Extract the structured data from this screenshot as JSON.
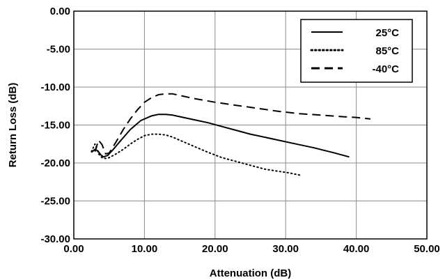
{
  "chart_data": {
    "type": "line",
    "title": "",
    "xlabel": "Attenuation (dB)",
    "ylabel": "Return Loss (dB)",
    "xlim": [
      0,
      50
    ],
    "ylim": [
      -30,
      0
    ],
    "x_ticks": [
      0,
      10,
      20,
      30,
      40,
      50
    ],
    "y_ticks": [
      0,
      -5,
      -10,
      -15,
      -20,
      -25,
      -30
    ],
    "x_tick_labels": [
      "0.00",
      "10.00",
      "20.00",
      "30.00",
      "40.00",
      "50.00"
    ],
    "y_tick_labels": [
      "0.00",
      "-5.00",
      "-10.00",
      "-15.00",
      "-20.00",
      "-25.00",
      "-30.00"
    ],
    "grid": true,
    "legend_position": "top-right",
    "series": [
      {
        "name": "25°C",
        "style": "solid",
        "x": [
          2.5,
          3.0,
          3.4,
          3.8,
          4.2,
          4.8,
          5.5,
          6.5,
          8.0,
          9.5,
          11.0,
          12.0,
          13.0,
          14.0,
          15.0,
          17.0,
          19.0,
          21.0,
          23.0,
          25.0,
          28.0,
          31.0,
          34.0,
          37.0,
          39.0
        ],
        "y": [
          -18.6,
          -18.2,
          -18.4,
          -18.9,
          -19.2,
          -19.0,
          -18.3,
          -17.2,
          -15.6,
          -14.4,
          -13.8,
          -13.6,
          -13.6,
          -13.7,
          -13.9,
          -14.3,
          -14.7,
          -15.2,
          -15.7,
          -16.2,
          -16.8,
          -17.4,
          -18.0,
          -18.7,
          -19.2
        ]
      },
      {
        "name": "85°C",
        "style": "dotted",
        "x": [
          2.5,
          3.0,
          3.5,
          4.0,
          4.5,
          5.0,
          6.0,
          7.0,
          8.0,
          9.0,
          10.0,
          11.0,
          12.0,
          13.0,
          14.0,
          15.0,
          17.0,
          19.0,
          21.0,
          23.0,
          25.0,
          27.0,
          29.0,
          30.5,
          32.0
        ],
        "y": [
          -18.5,
          -17.5,
          -18.8,
          -19.3,
          -19.4,
          -19.3,
          -18.8,
          -18.2,
          -17.5,
          -16.9,
          -16.4,
          -16.2,
          -16.2,
          -16.3,
          -16.6,
          -17.0,
          -17.8,
          -18.6,
          -19.3,
          -19.8,
          -20.3,
          -20.8,
          -21.1,
          -21.3,
          -21.6
        ]
      },
      {
        "name": "-40°C",
        "style": "dashed",
        "x": [
          3.0,
          3.5,
          4.0,
          4.5,
          5.0,
          6.0,
          7.0,
          8.0,
          9.0,
          10.0,
          11.0,
          12.0,
          13.0,
          14.0,
          15.0,
          17.0,
          20.0,
          23.0,
          26.0,
          29.0,
          32.0,
          35.0,
          38.0,
          40.0,
          42.0
        ],
        "y": [
          -18.5,
          -17.0,
          -17.6,
          -18.8,
          -18.7,
          -17.2,
          -15.6,
          -14.2,
          -13.0,
          -12.0,
          -11.4,
          -11.0,
          -10.9,
          -10.9,
          -11.1,
          -11.5,
          -12.0,
          -12.4,
          -12.8,
          -13.2,
          -13.5,
          -13.7,
          -13.9,
          -14.0,
          -14.2
        ]
      }
    ]
  }
}
